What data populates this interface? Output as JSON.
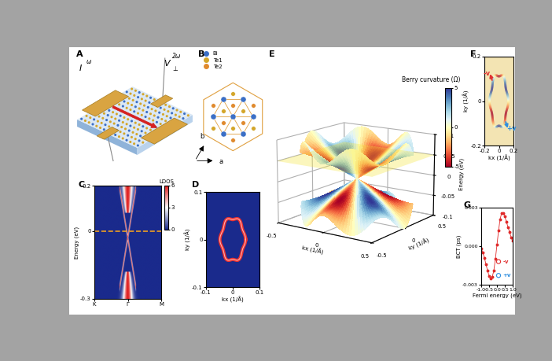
{
  "panels": {
    "A": {
      "label": "A",
      "current": "I",
      "current_sup": "ω",
      "voltage": "V",
      "voltage_sup": "2ω",
      "voltage_sub": "⊥"
    },
    "B": {
      "label": "B",
      "legend": "upper left",
      "series": [
        {
          "name": "Bi",
          "color": "#3b6fc6"
        },
        {
          "name": "Te1",
          "color": "#d4a62a"
        },
        {
          "name": "Te2",
          "color": "#e08a2e"
        }
      ],
      "axes": [
        "a",
        "b"
      ]
    }
  },
  "chart_data": [
    {
      "label": "C",
      "type": "heatmap",
      "ylabel": "Energy (eV)",
      "categories": [
        "K",
        "Γ",
        "M"
      ],
      "ylim": [
        -0.3,
        0.2
      ],
      "yticks": [
        -0.3,
        0,
        0.2
      ],
      "fermi_level": 0,
      "color": "#f0a020",
      "colorbar": {
        "label": "LDOS",
        "range": [
          0,
          6
        ],
        "ticks": [
          0,
          3,
          6
        ]
      }
    },
    {
      "label": "D",
      "type": "contour",
      "xlabel": "kx (1/Å)",
      "ylabel": "ky (1/Å)",
      "xlim": [
        -0.1,
        0.1
      ],
      "xticks": [
        -0.1,
        0,
        0.1
      ],
      "ylim": [
        -0.1,
        0.1
      ],
      "yticks": [
        -0.1,
        0,
        0.1
      ]
    },
    {
      "label": "E",
      "type": "surface",
      "xlabel": "kx (1/Å)",
      "ylabel": "ky (1/Å)",
      "zlabel": "Energy (eV)",
      "xlim": [
        -0.5,
        0.5
      ],
      "xticks": [
        -0.5,
        0,
        0.5
      ],
      "ylim": [
        -0.5,
        0.5
      ],
      "yticks": [
        -0.5,
        0,
        0.5
      ],
      "zlim": [
        -0.1,
        0.1
      ],
      "zticks": [
        -0.1,
        -0.05,
        0,
        0.05,
        0.1
      ],
      "fermi_level": 0.05,
      "colorbar": {
        "label": "Berry curvature (Ω)",
        "range": [
          -5,
          5
        ],
        "ticks": [
          -5,
          0,
          5
        ]
      }
    },
    {
      "label": "F",
      "type": "contour",
      "xlabel": "kx (1/Å)",
      "ylabel": "ky (1/Å)",
      "xlim": [
        -0.2,
        0.2
      ],
      "xticks": [
        -0.2,
        0,
        0.2
      ],
      "ylim": [
        -0.2,
        0.2
      ],
      "yticks": [
        -0.2,
        0,
        0.2
      ],
      "annotations": [
        {
          "text": "-v",
          "color": "#e03030"
        },
        {
          "text": "+v",
          "color": "#2f8fe0"
        }
      ]
    },
    {
      "label": "G",
      "type": "line",
      "xlabel": "Fermi energy (eV)",
      "ylabel": "BCT (ps)",
      "color": "#e02a2a",
      "marker": "o",
      "x": [
        -1.0,
        -0.9,
        -0.8,
        -0.7,
        -0.6,
        -0.5,
        -0.4,
        -0.3,
        -0.2,
        -0.1,
        0.0,
        0.1,
        0.2,
        0.3,
        0.4,
        0.5,
        0.6,
        0.7,
        0.8,
        0.9,
        1.0
      ],
      "values": [
        -0.0002,
        -0.0005,
        -0.0009,
        -0.0014,
        -0.0019,
        -0.0023,
        -0.0025,
        -0.0024,
        -0.0019,
        -0.001,
        0.0001,
        0.0012,
        0.0021,
        0.0026,
        0.0026,
        0.0023,
        0.0019,
        0.0015,
        0.0011,
        0.0007,
        0.0004
      ],
      "xlim": [
        -1.0,
        1.0
      ],
      "xticks": [
        {
          "value": -1.0,
          "label": "-1.0"
        },
        {
          "value": -0.5,
          "label": "-0.5"
        },
        {
          "value": 0.0,
          "label": "0.0"
        },
        {
          "value": 0.5,
          "label": "0.5"
        },
        {
          "value": 1.0,
          "label": "1.0"
        }
      ],
      "ylim": [
        -0.003,
        0.003
      ],
      "yticks": [
        -0.003,
        {
          "value": 0.0,
          "label": "0.000"
        },
        0.003
      ],
      "annotations": [
        {
          "text": "+v",
          "color": "#2f8fe0"
        },
        {
          "text": "-v",
          "color": "#e03030"
        }
      ]
    }
  ]
}
